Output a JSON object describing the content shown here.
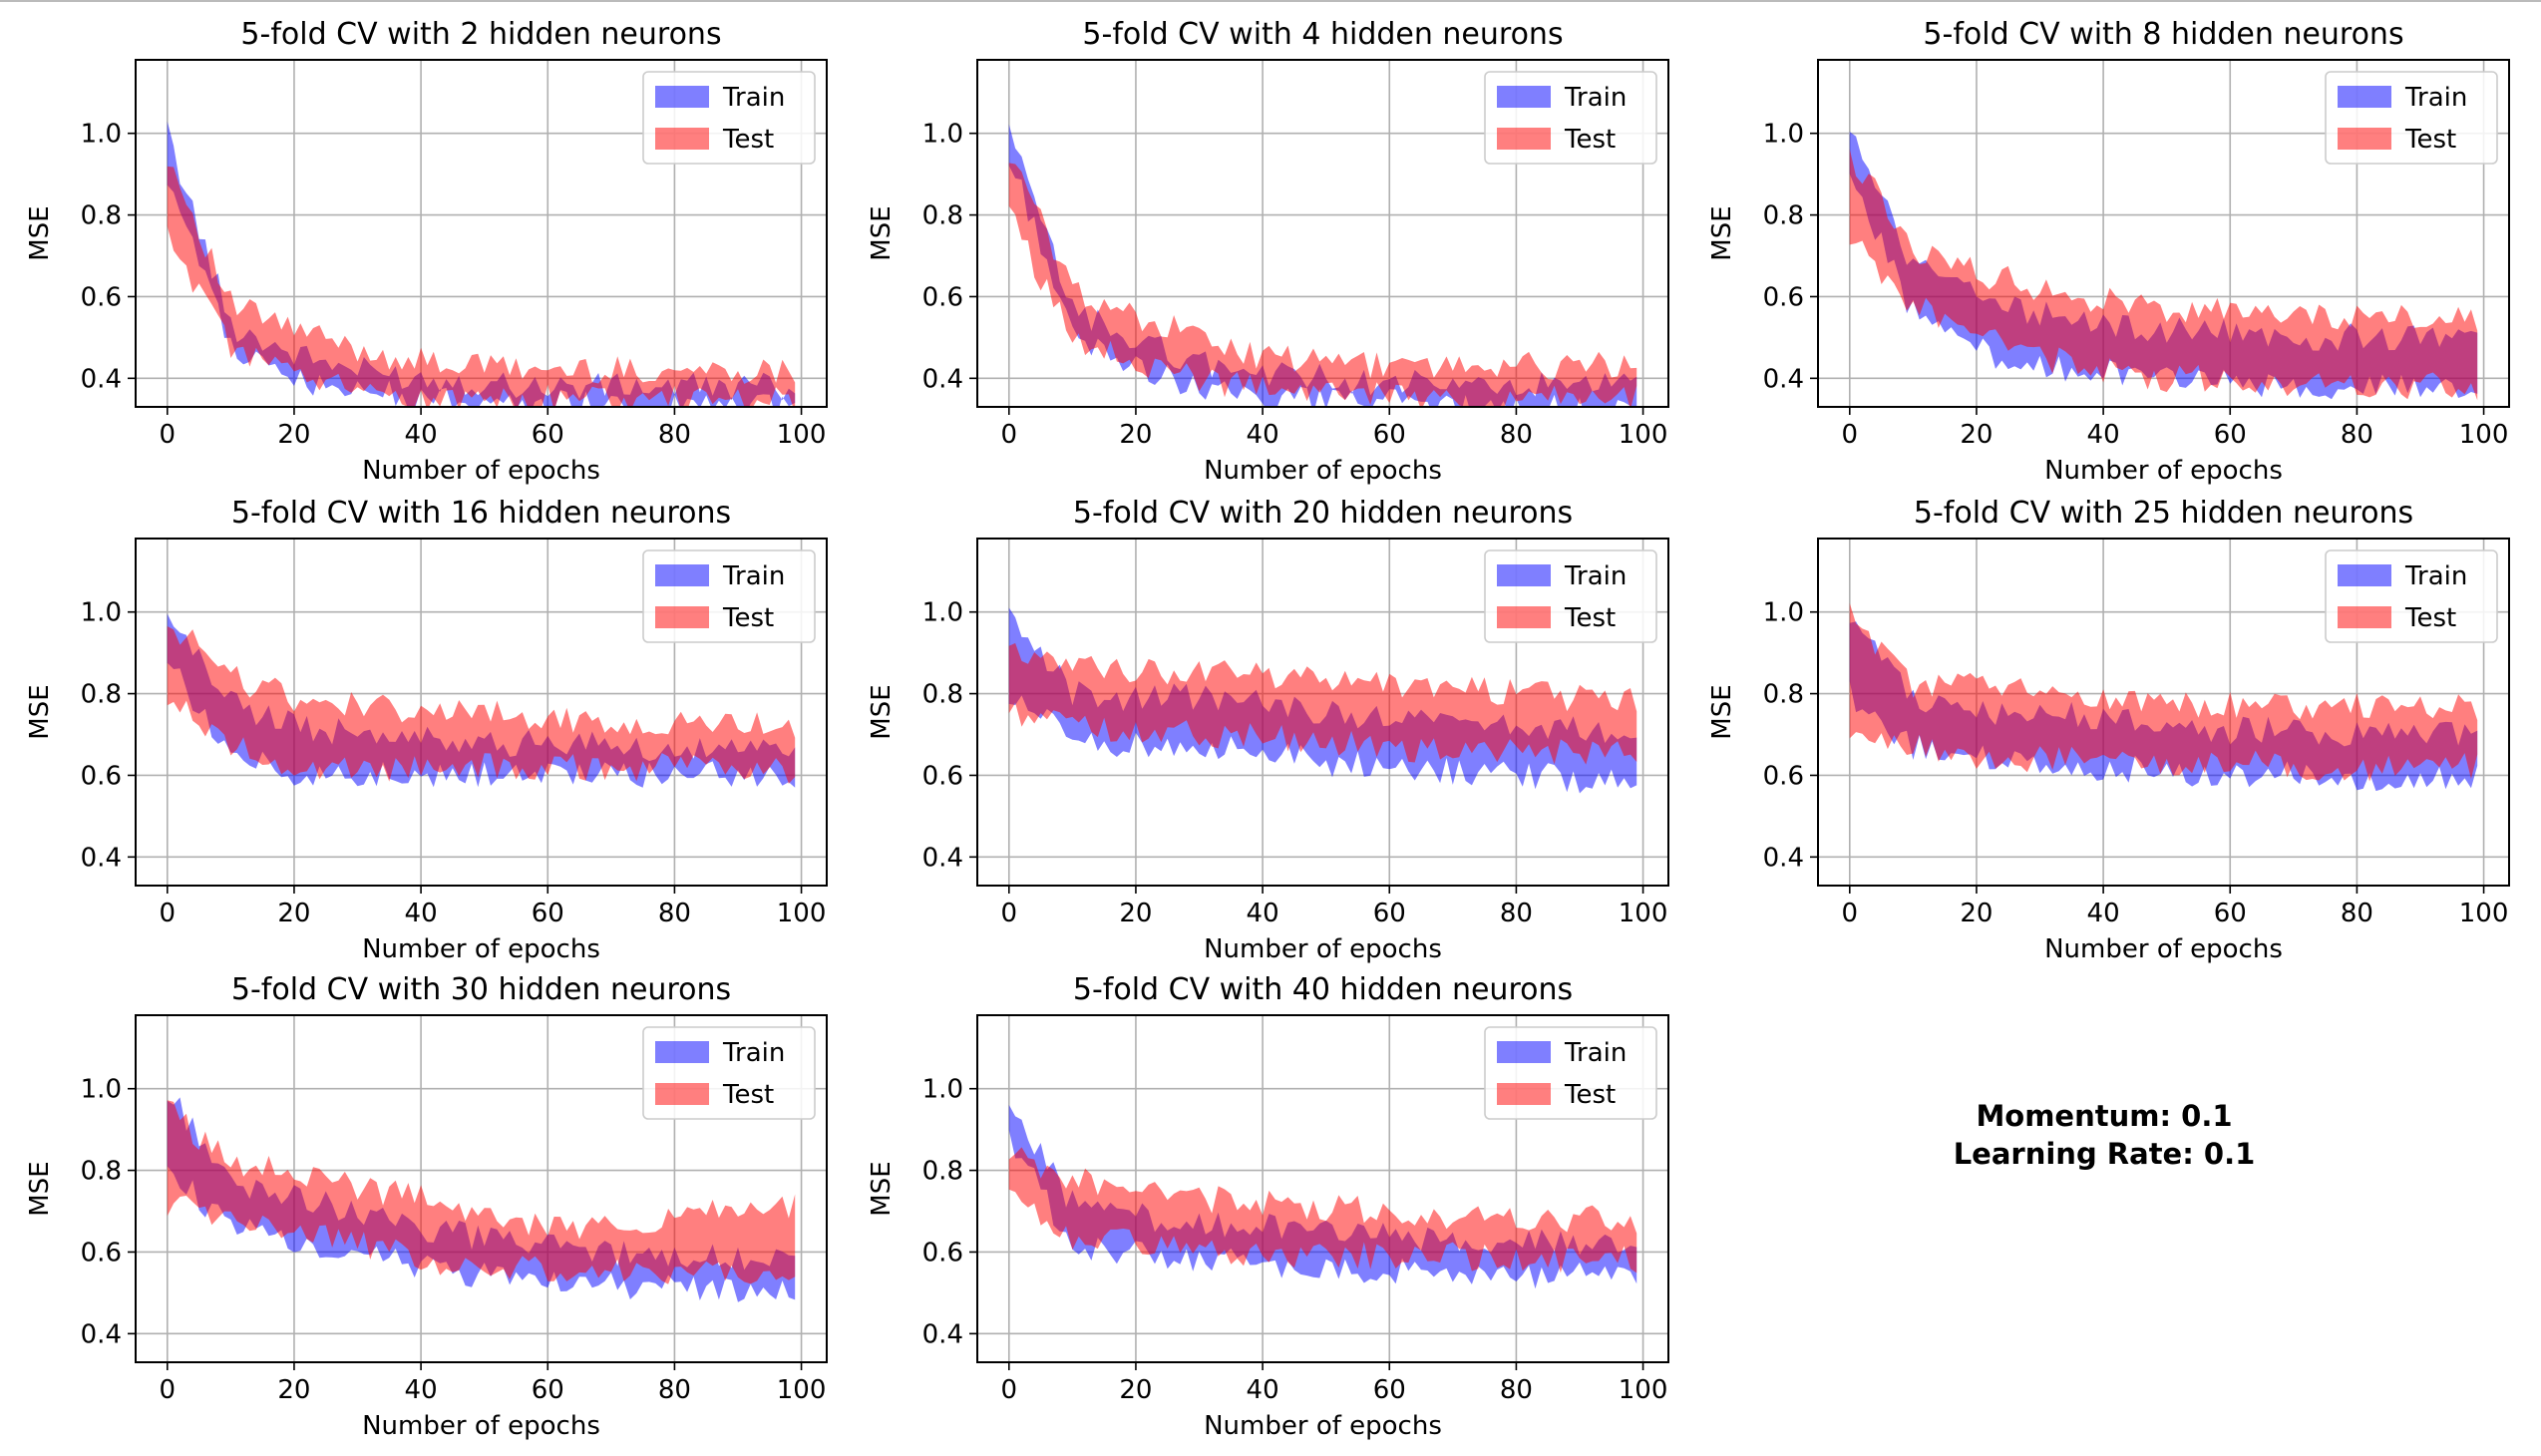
{
  "note": {
    "momentum": "Momentum: 0.1",
    "learning_rate": "Learning Rate: 0.1"
  },
  "colors": {
    "train": "#0000ff",
    "test": "#ff0000",
    "grid": "#b0b0b0"
  },
  "chart_data": [
    {
      "type": "area",
      "title": "5-fold CV with 2 hidden neurons",
      "xlabel": "Number of epochs",
      "ylabel": "MSE",
      "xlim": [
        -5,
        104
      ],
      "ylim": [
        0.33,
        1.18
      ],
      "xticks": [
        0,
        20,
        40,
        60,
        80,
        100
      ],
      "yticks": [
        0.4,
        0.6,
        0.8,
        1.0
      ],
      "grid": true,
      "legend": "top-right",
      "series": [
        {
          "name": "Train",
          "x": [
            0,
            10,
            20,
            30,
            40,
            50,
            60,
            70,
            80,
            90,
            99
          ],
          "lower": [
            0.9,
            0.47,
            0.4,
            0.37,
            0.35,
            0.34,
            0.34,
            0.33,
            0.33,
            0.33,
            0.33
          ],
          "upper": [
            1.0,
            0.53,
            0.46,
            0.42,
            0.4,
            0.39,
            0.38,
            0.38,
            0.38,
            0.38,
            0.38
          ]
        },
        {
          "name": "Test",
          "x": [
            0,
            10,
            20,
            30,
            40,
            50,
            60,
            70,
            80,
            90,
            99
          ],
          "lower": [
            0.75,
            0.48,
            0.4,
            0.37,
            0.35,
            0.35,
            0.35,
            0.35,
            0.35,
            0.35,
            0.35
          ],
          "upper": [
            0.95,
            0.58,
            0.52,
            0.47,
            0.44,
            0.43,
            0.42,
            0.42,
            0.42,
            0.42,
            0.42
          ]
        }
      ]
    },
    {
      "type": "area",
      "title": "5-fold CV with 4 hidden neurons",
      "xlabel": "Number of epochs",
      "ylabel": "MSE",
      "xlim": [
        -5,
        104
      ],
      "ylim": [
        0.33,
        1.18
      ],
      "xticks": [
        0,
        20,
        40,
        60,
        80,
        100
      ],
      "yticks": [
        0.4,
        0.6,
        0.8,
        1.0
      ],
      "grid": true,
      "legend": "top-right",
      "series": [
        {
          "name": "Train",
          "x": [
            0,
            10,
            20,
            30,
            40,
            50,
            60,
            70,
            80,
            90,
            99
          ],
          "lower": [
            0.95,
            0.5,
            0.42,
            0.38,
            0.35,
            0.34,
            0.34,
            0.33,
            0.33,
            0.33,
            0.33
          ],
          "upper": [
            1.0,
            0.57,
            0.49,
            0.44,
            0.41,
            0.4,
            0.39,
            0.38,
            0.38,
            0.38,
            0.38
          ]
        },
        {
          "name": "Test",
          "x": [
            0,
            10,
            20,
            30,
            40,
            50,
            60,
            70,
            80,
            90,
            99
          ],
          "lower": [
            0.8,
            0.5,
            0.43,
            0.4,
            0.37,
            0.36,
            0.36,
            0.35,
            0.35,
            0.35,
            0.35
          ],
          "upper": [
            0.95,
            0.62,
            0.55,
            0.5,
            0.45,
            0.44,
            0.43,
            0.43,
            0.43,
            0.43,
            0.43
          ]
        }
      ]
    },
    {
      "type": "area",
      "title": "5-fold CV with 8 hidden neurons",
      "xlabel": "Number of epochs",
      "ylabel": "MSE",
      "xlim": [
        -5,
        104
      ],
      "ylim": [
        0.33,
        1.18
      ],
      "xticks": [
        0,
        20,
        40,
        60,
        80,
        100
      ],
      "yticks": [
        0.4,
        0.6,
        0.8,
        1.0
      ],
      "grid": true,
      "legend": "top-right",
      "series": [
        {
          "name": "Train",
          "x": [
            0,
            10,
            20,
            30,
            40,
            50,
            60,
            70,
            80,
            90,
            99
          ],
          "lower": [
            0.9,
            0.56,
            0.47,
            0.43,
            0.41,
            0.4,
            0.39,
            0.38,
            0.38,
            0.38,
            0.37
          ],
          "upper": [
            1.0,
            0.68,
            0.6,
            0.56,
            0.53,
            0.52,
            0.51,
            0.5,
            0.5,
            0.5,
            0.49
          ]
        },
        {
          "name": "Test",
          "x": [
            0,
            10,
            20,
            30,
            40,
            50,
            60,
            70,
            80,
            90,
            99
          ],
          "lower": [
            0.75,
            0.58,
            0.5,
            0.45,
            0.42,
            0.4,
            0.4,
            0.39,
            0.39,
            0.38,
            0.38
          ],
          "upper": [
            0.95,
            0.72,
            0.66,
            0.62,
            0.59,
            0.57,
            0.56,
            0.56,
            0.55,
            0.55,
            0.54
          ]
        }
      ]
    },
    {
      "type": "area",
      "title": "5-fold CV with 16 hidden neurons",
      "xlabel": "Number of epochs",
      "ylabel": "MSE",
      "xlim": [
        -5,
        104
      ],
      "ylim": [
        0.33,
        1.18
      ],
      "xticks": [
        0,
        20,
        40,
        60,
        80,
        100
      ],
      "yticks": [
        0.4,
        0.6,
        0.8,
        1.0
      ],
      "grid": true,
      "legend": "top-right",
      "series": [
        {
          "name": "Train",
          "x": [
            0,
            10,
            20,
            30,
            40,
            50,
            60,
            70,
            80,
            90,
            99
          ],
          "lower": [
            0.88,
            0.66,
            0.61,
            0.6,
            0.6,
            0.6,
            0.6,
            0.6,
            0.6,
            0.6,
            0.6
          ],
          "upper": [
            0.98,
            0.78,
            0.72,
            0.7,
            0.69,
            0.68,
            0.68,
            0.67,
            0.67,
            0.67,
            0.67
          ]
        },
        {
          "name": "Test",
          "x": [
            0,
            10,
            20,
            30,
            40,
            50,
            60,
            70,
            80,
            90,
            99
          ],
          "lower": [
            0.8,
            0.68,
            0.62,
            0.61,
            0.62,
            0.62,
            0.62,
            0.62,
            0.62,
            0.61,
            0.61
          ],
          "upper": [
            0.98,
            0.84,
            0.79,
            0.77,
            0.76,
            0.75,
            0.74,
            0.73,
            0.73,
            0.72,
            0.72
          ]
        }
      ]
    },
    {
      "type": "area",
      "title": "5-fold CV with 20 hidden neurons",
      "xlabel": "Number of epochs",
      "ylabel": "MSE",
      "xlim": [
        -5,
        104
      ],
      "ylim": [
        0.33,
        1.18
      ],
      "xticks": [
        0,
        20,
        40,
        60,
        80,
        100
      ],
      "yticks": [
        0.4,
        0.6,
        0.8,
        1.0
      ],
      "grid": true,
      "legend": "top-right",
      "series": [
        {
          "name": "Train",
          "x": [
            0,
            10,
            20,
            30,
            40,
            50,
            60,
            70,
            80,
            90,
            99
          ],
          "lower": [
            0.8,
            0.68,
            0.67,
            0.67,
            0.66,
            0.63,
            0.62,
            0.61,
            0.6,
            0.59,
            0.58
          ],
          "upper": [
            0.98,
            0.8,
            0.79,
            0.79,
            0.78,
            0.75,
            0.74,
            0.73,
            0.72,
            0.71,
            0.7
          ]
        },
        {
          "name": "Test",
          "x": [
            0,
            10,
            20,
            30,
            40,
            50,
            60,
            70,
            80,
            90,
            99
          ],
          "lower": [
            0.75,
            0.72,
            0.71,
            0.7,
            0.7,
            0.68,
            0.67,
            0.66,
            0.66,
            0.65,
            0.65
          ],
          "upper": [
            0.92,
            0.86,
            0.86,
            0.85,
            0.85,
            0.83,
            0.82,
            0.81,
            0.8,
            0.79,
            0.78
          ]
        }
      ]
    },
    {
      "type": "area",
      "title": "5-fold CV with 25 hidden neurons",
      "xlabel": "Number of epochs",
      "ylabel": "MSE",
      "xlim": [
        -5,
        104
      ],
      "ylim": [
        0.33,
        1.18
      ],
      "xticks": [
        0,
        20,
        40,
        60,
        80,
        100
      ],
      "yticks": [
        0.4,
        0.6,
        0.8,
        1.0
      ],
      "grid": true,
      "legend": "top-right",
      "series": [
        {
          "name": "Train",
          "x": [
            0,
            10,
            20,
            30,
            40,
            50,
            60,
            70,
            80,
            90,
            99
          ],
          "lower": [
            0.8,
            0.67,
            0.64,
            0.63,
            0.62,
            0.61,
            0.6,
            0.6,
            0.59,
            0.59,
            0.59
          ],
          "upper": [
            1.0,
            0.78,
            0.76,
            0.75,
            0.74,
            0.72,
            0.71,
            0.71,
            0.7,
            0.7,
            0.7
          ]
        },
        {
          "name": "Test",
          "x": [
            0,
            10,
            20,
            30,
            40,
            50,
            60,
            70,
            80,
            90,
            99
          ],
          "lower": [
            0.72,
            0.68,
            0.65,
            0.64,
            0.63,
            0.63,
            0.63,
            0.62,
            0.62,
            0.62,
            0.62
          ],
          "upper": [
            1.0,
            0.82,
            0.82,
            0.8,
            0.79,
            0.78,
            0.77,
            0.77,
            0.77,
            0.77,
            0.77
          ]
        }
      ]
    },
    {
      "type": "area",
      "title": "5-fold CV with 30 hidden neurons",
      "xlabel": "Number of epochs",
      "ylabel": "MSE",
      "xlim": [
        -5,
        104
      ],
      "ylim": [
        0.33,
        1.18
      ],
      "xticks": [
        0,
        20,
        40,
        60,
        80,
        100
      ],
      "yticks": [
        0.4,
        0.6,
        0.8,
        1.0
      ],
      "grid": true,
      "legend": "top-right",
      "series": [
        {
          "name": "Train",
          "x": [
            0,
            10,
            20,
            30,
            40,
            50,
            60,
            70,
            80,
            90,
            99
          ],
          "lower": [
            0.8,
            0.66,
            0.63,
            0.6,
            0.56,
            0.54,
            0.53,
            0.52,
            0.51,
            0.51,
            0.51
          ],
          "upper": [
            1.0,
            0.76,
            0.73,
            0.7,
            0.66,
            0.63,
            0.61,
            0.6,
            0.59,
            0.59,
            0.59
          ]
        },
        {
          "name": "Test",
          "x": [
            0,
            10,
            20,
            30,
            40,
            50,
            60,
            70,
            80,
            90,
            99
          ],
          "lower": [
            0.72,
            0.68,
            0.65,
            0.62,
            0.58,
            0.56,
            0.56,
            0.56,
            0.55,
            0.55,
            0.55
          ],
          "upper": [
            0.95,
            0.82,
            0.79,
            0.76,
            0.73,
            0.68,
            0.66,
            0.67,
            0.69,
            0.7,
            0.71
          ]
        }
      ]
    },
    {
      "type": "area",
      "title": "5-fold CV with 40 hidden neurons",
      "xlabel": "Number of epochs",
      "ylabel": "MSE",
      "xlim": [
        -5,
        104
      ],
      "ylim": [
        0.33,
        1.18
      ],
      "xticks": [
        0,
        20,
        40,
        60,
        80,
        100
      ],
      "yticks": [
        0.4,
        0.6,
        0.8,
        1.0
      ],
      "grid": true,
      "legend": "top-right",
      "series": [
        {
          "name": "Train",
          "x": [
            0,
            10,
            20,
            30,
            40,
            50,
            60,
            70,
            80,
            90,
            99
          ],
          "lower": [
            0.88,
            0.62,
            0.6,
            0.58,
            0.57,
            0.56,
            0.55,
            0.55,
            0.54,
            0.54,
            0.53
          ],
          "upper": [
            0.96,
            0.72,
            0.69,
            0.67,
            0.66,
            0.65,
            0.64,
            0.63,
            0.63,
            0.62,
            0.62
          ]
        },
        {
          "name": "Test",
          "x": [
            0,
            10,
            20,
            30,
            40,
            50,
            60,
            70,
            80,
            90,
            99
          ],
          "lower": [
            0.72,
            0.64,
            0.62,
            0.6,
            0.6,
            0.59,
            0.59,
            0.59,
            0.58,
            0.58,
            0.58
          ],
          "upper": [
            0.85,
            0.78,
            0.74,
            0.73,
            0.72,
            0.71,
            0.7,
            0.69,
            0.69,
            0.68,
            0.68
          ]
        }
      ]
    }
  ]
}
